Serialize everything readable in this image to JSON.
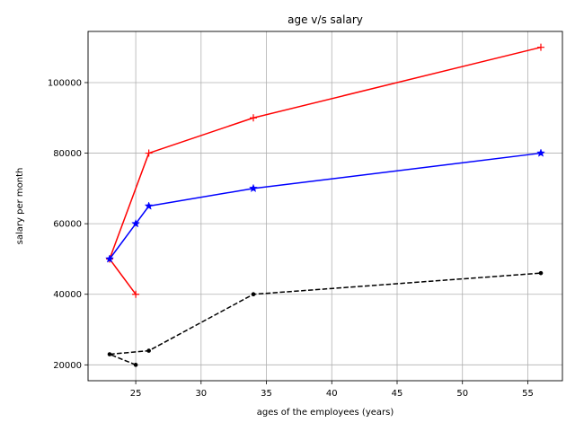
{
  "chart_data": {
    "type": "line",
    "title": "age v/s salary",
    "xlabel": "ages of the employees (years)",
    "ylabel": "salary per month",
    "xlim": [
      21.35,
      57.65
    ],
    "ylim": [
      15500,
      114500
    ],
    "xticks": [
      25,
      30,
      35,
      40,
      45,
      50,
      55
    ],
    "yticks": [
      20000,
      40000,
      60000,
      80000,
      100000
    ],
    "grid": true,
    "series": [
      {
        "color": "#ff0000",
        "linestyle": "solid",
        "marker": "plus",
        "x": [
          25,
          23,
          26,
          34,
          56
        ],
        "y": [
          40000,
          50000,
          80000,
          90000,
          110000
        ]
      },
      {
        "color": "#0000ff",
        "linestyle": "solid",
        "marker": "star",
        "x": [
          23,
          25,
          26,
          34,
          56
        ],
        "y": [
          50000,
          60000,
          65000,
          70000,
          80000
        ]
      },
      {
        "color": "#000000",
        "linestyle": "dashed",
        "marker": "dot",
        "x": [
          25,
          23,
          26,
          34,
          56
        ],
        "y": [
          20000,
          23000,
          24000,
          40000,
          46000
        ]
      }
    ]
  }
}
